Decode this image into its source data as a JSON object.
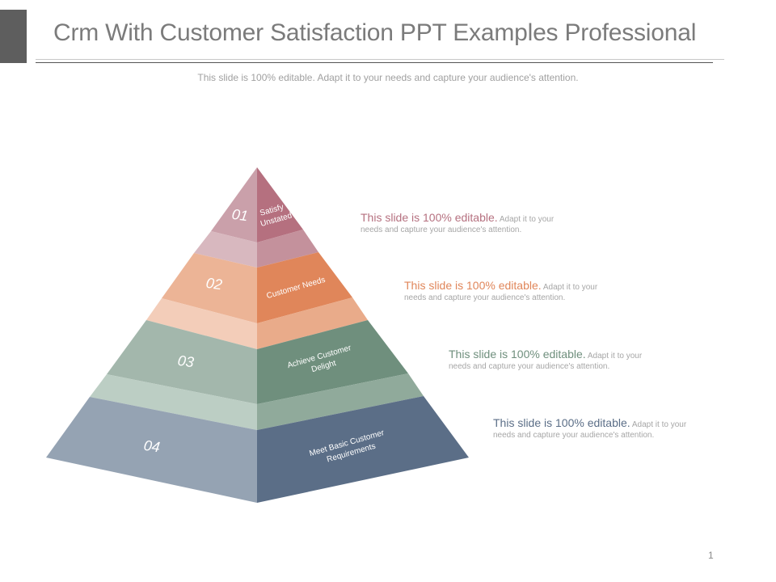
{
  "slide": {
    "title": "Crm With Customer Satisfaction PPT Examples Professional",
    "subtitle": "This slide is 100% editable. Adapt it to your needs and capture your audience's attention.",
    "page_number": "1"
  },
  "tiers": [
    {
      "number": "01",
      "label_lines": [
        "Satisfy",
        "Unstated"
      ],
      "lead": "This slide is 100% editable.",
      "body_1": " Adapt it to your",
      "body_2": "needs and capture your audience's attention.",
      "color": "#b5707f"
    },
    {
      "number": "02",
      "label_lines": [
        "Customer Needs"
      ],
      "lead": "This slide is 100% editable.",
      "body_1": " Adapt it to your",
      "body_2": "needs and capture your audience's attention.",
      "color": "#e0865a"
    },
    {
      "number": "03",
      "label_lines": [
        "Achieve Customer",
        "Delight"
      ],
      "lead": "This slide is 100% editable.",
      "body_1": " Adapt it to your",
      "body_2": "needs and capture your audience's attention.",
      "color": "#6f8f7d"
    },
    {
      "number": "04",
      "label_lines": [
        "Meet Basic Customer",
        "Requirements"
      ],
      "lead": "This slide is 100% editable.",
      "body_1": " Adapt it to your",
      "body_2": "needs and capture your audience's attention.",
      "color": "#5b6e87"
    }
  ]
}
